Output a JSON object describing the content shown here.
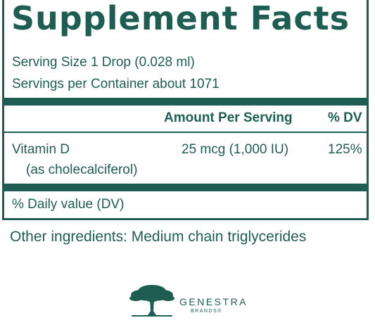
{
  "panel": {
    "title": "Supplement Facts",
    "serving_size": "Serving Size 1 Drop (0.028 ml)",
    "servings_per_container": "Servings per Container about 1071"
  },
  "table": {
    "header_amount": "Amount Per Serving",
    "header_dv": "% DV",
    "rows": [
      {
        "name": "Vitamin D",
        "sub": "(as cholecalciferol)",
        "amount": "25 mcg (1,000 IU)",
        "dv": "125%"
      }
    ]
  },
  "footnote": "% Daily value (DV)",
  "other_ingredients": "Other ingredients: Medium chain triglycerides",
  "brand": {
    "name": "GENESTRA",
    "sub": "BRANDS®"
  },
  "colors": {
    "brand_green": "#1e5e52"
  }
}
